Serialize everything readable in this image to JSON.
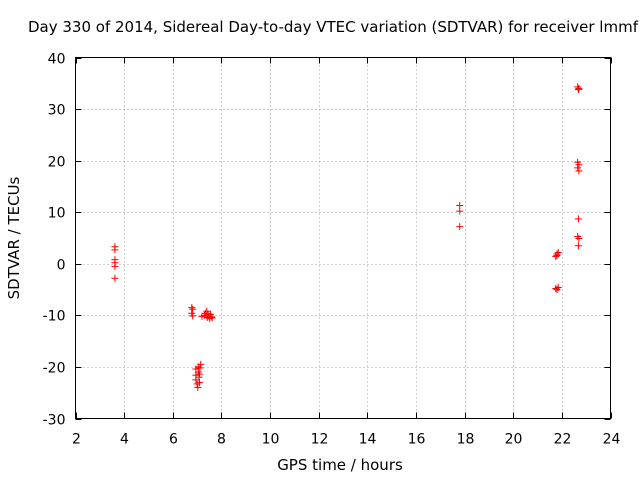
{
  "chart_data": {
    "type": "scatter",
    "title": "Day 330 of 2014, Sidereal Day-to-day VTEC variation (SDTVAR) for receiver lmmf",
    "xlabel": "GPS time / hours",
    "ylabel": "SDTVAR / TECUs",
    "xlim": [
      2,
      24
    ],
    "ylim": [
      -30,
      40
    ],
    "xticks": [
      2,
      4,
      6,
      8,
      10,
      12,
      14,
      16,
      18,
      20,
      22,
      24
    ],
    "yticks": [
      -30,
      -20,
      -10,
      0,
      10,
      20,
      30,
      40
    ],
    "xtick_labels": [
      "2",
      "4",
      "6",
      "8",
      "10",
      "12",
      "14",
      "16",
      "18",
      "20",
      "22",
      "24"
    ],
    "ytick_labels": [
      "-30",
      "-20",
      "-10",
      "0",
      "10",
      "20",
      "30",
      "40"
    ],
    "grid": true,
    "marker": "+",
    "color": "#ff0000",
    "series": [
      {
        "name": "SDTVAR",
        "points": [
          [
            3.62,
            3.3
          ],
          [
            3.62,
            2.7
          ],
          [
            3.62,
            0.8
          ],
          [
            3.62,
            0.2
          ],
          [
            3.62,
            -0.5
          ],
          [
            3.62,
            -2.8
          ],
          [
            6.78,
            -8.5
          ],
          [
            6.82,
            -8.8
          ],
          [
            6.78,
            -9.6
          ],
          [
            6.82,
            -10.1
          ],
          [
            6.95,
            -20.4
          ],
          [
            6.95,
            -21.6
          ],
          [
            6.95,
            -22.5
          ],
          [
            7.0,
            -23.3
          ],
          [
            7.03,
            -24.0
          ],
          [
            7.05,
            -20.0
          ],
          [
            7.05,
            -21.0
          ],
          [
            7.08,
            -22.0
          ],
          [
            7.1,
            -23.0
          ],
          [
            7.12,
            -20.2
          ],
          [
            7.15,
            -19.5
          ],
          [
            7.1,
            -21.4
          ],
          [
            7.2,
            -10.2
          ],
          [
            7.3,
            -10.0
          ],
          [
            7.35,
            -9.6
          ],
          [
            7.4,
            -9.2
          ],
          [
            7.42,
            -10.4
          ],
          [
            7.45,
            -9.8
          ],
          [
            7.5,
            -10.2
          ],
          [
            7.52,
            -10.6
          ],
          [
            7.55,
            -9.8
          ],
          [
            7.6,
            -10.3
          ],
          [
            7.62,
            -10.5
          ],
          [
            17.8,
            11.3
          ],
          [
            17.8,
            10.2
          ],
          [
            17.8,
            7.2
          ],
          [
            21.75,
            1.4
          ],
          [
            21.8,
            1.9
          ],
          [
            21.85,
            2.2
          ],
          [
            21.8,
            1.6
          ],
          [
            21.75,
            -4.8
          ],
          [
            21.8,
            -5.0
          ],
          [
            21.85,
            -4.6
          ],
          [
            22.65,
            34.3
          ],
          [
            22.7,
            34.0
          ],
          [
            22.68,
            33.8
          ],
          [
            22.65,
            19.7
          ],
          [
            22.7,
            19.2
          ],
          [
            22.65,
            18.6
          ],
          [
            22.7,
            18.0
          ],
          [
            22.68,
            8.7
          ],
          [
            22.65,
            5.3
          ],
          [
            22.7,
            4.9
          ],
          [
            22.68,
            3.5
          ]
        ]
      }
    ]
  }
}
